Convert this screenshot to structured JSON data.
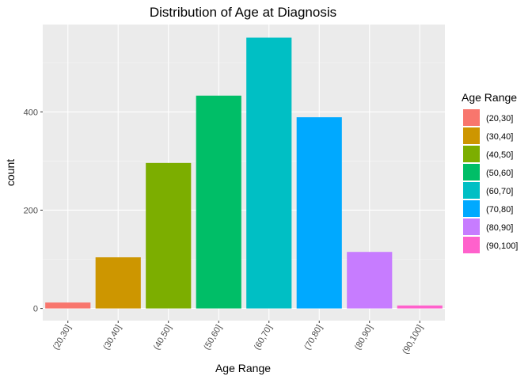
{
  "chart_data": {
    "type": "bar",
    "title": "Distribution of Age at Diagnosis",
    "xlabel": "Age Range",
    "ylabel": "count",
    "categories": [
      "(20,30]",
      "(30,40]",
      "(40,50]",
      "(50,60]",
      "(60,70]",
      "(70,80]",
      "(80,90]",
      "(90,100]"
    ],
    "values": [
      12,
      104,
      296,
      433,
      551,
      389,
      115,
      6
    ],
    "colors": [
      "#F8766D",
      "#CD9600",
      "#7CAE00",
      "#00BE67",
      "#00BFC4",
      "#00A9FF",
      "#C77CFF",
      "#FF61CC"
    ],
    "ylim": [
      0,
      578
    ],
    "yticks": [
      0,
      200,
      400
    ],
    "grid": true,
    "legend": {
      "title": "Age Range",
      "position": "right",
      "entries": [
        "(20,30]",
        "(30,40]",
        "(40,50]",
        "(50,60]",
        "(60,70]",
        "(70,80]",
        "(80,90]",
        "(90,100]"
      ]
    }
  }
}
